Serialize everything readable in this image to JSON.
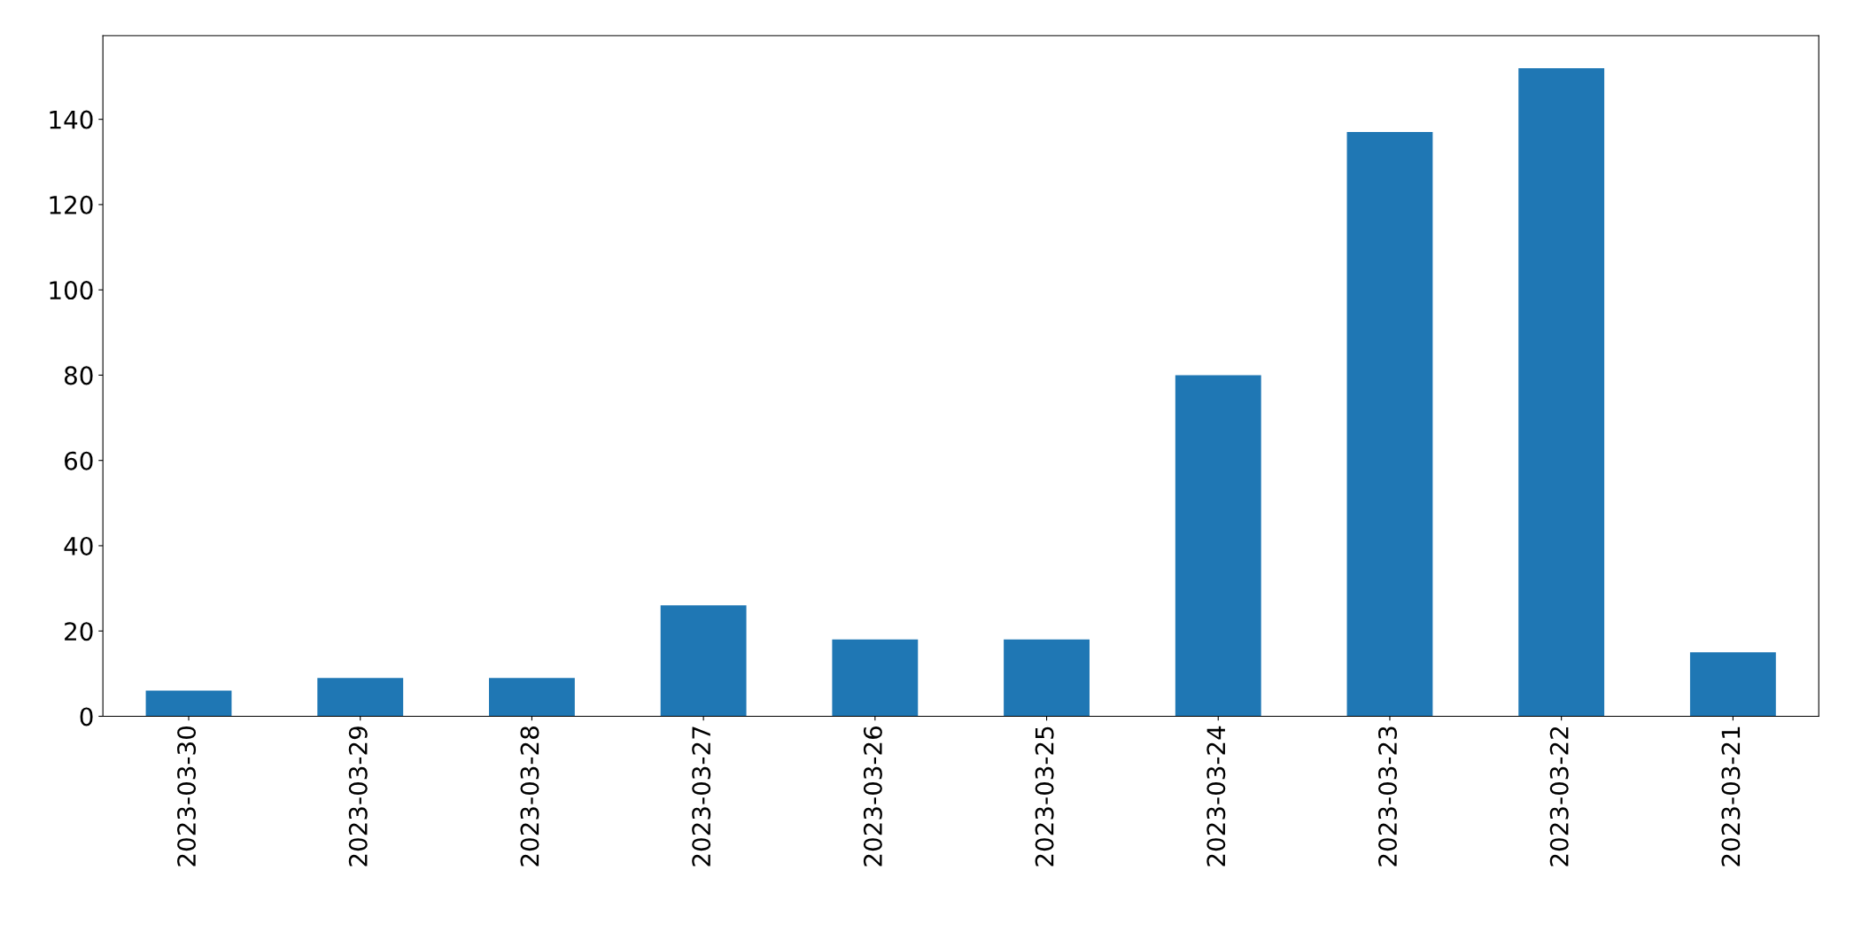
{
  "chart_data": {
    "type": "bar",
    "categories": [
      "2023-03-30",
      "2023-03-29",
      "2023-03-28",
      "2023-03-27",
      "2023-03-26",
      "2023-03-25",
      "2023-03-24",
      "2023-03-23",
      "2023-03-22",
      "2023-03-21"
    ],
    "values": [
      6,
      9,
      9,
      26,
      18,
      18,
      80,
      137,
      152,
      15
    ],
    "color": "#1f77b4",
    "ylim": [
      0,
      159.6
    ],
    "yticks": [
      0,
      20,
      40,
      60,
      80,
      100,
      120,
      140
    ],
    "grid": false,
    "legend": false
  }
}
